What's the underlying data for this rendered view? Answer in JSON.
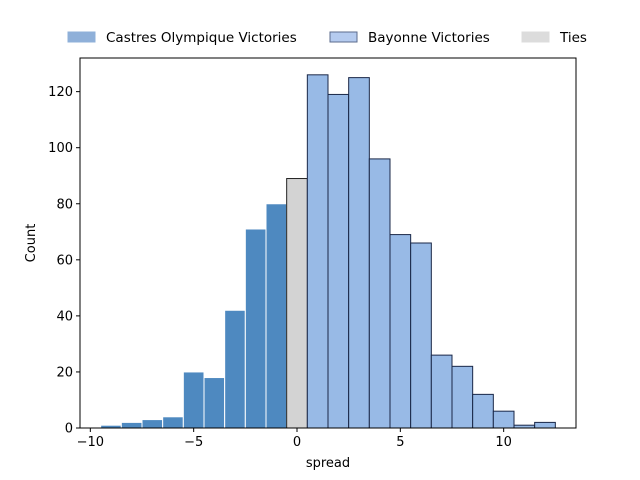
{
  "chart_data": {
    "type": "bar",
    "title": "",
    "xlabel": "spread",
    "ylabel": "Count",
    "xlim": [
      -10.5,
      13.5
    ],
    "ylim": [
      0,
      132
    ],
    "xticks": [
      -10,
      -5,
      0,
      5,
      10
    ],
    "yticks": [
      0,
      20,
      40,
      60,
      80,
      100,
      120
    ],
    "x_tick_labels": [
      "−10",
      "−5",
      "0",
      "5",
      "10"
    ],
    "y_tick_labels": [
      "0",
      "20",
      "40",
      "60",
      "80",
      "100",
      "120"
    ],
    "bin_width": 1,
    "legend": {
      "placement": "top (outside plot area)",
      "entries": [
        {
          "label": "Castres Olympique Victories",
          "color": "#8fb0d9",
          "edge": "#8fb0d9"
        },
        {
          "label": "Bayonne Victories",
          "color": "#b5cbef",
          "edge": "#5b6b8c"
        },
        {
          "label": "Ties",
          "color": "#dcdcdc",
          "edge": "#dcdcdc"
        }
      ]
    },
    "series": [
      {
        "name": "Castres Olympique Victories",
        "color": "#4e89c0",
        "edge": "#ffffff",
        "bins": [
          {
            "left": -9.5,
            "value": 1
          },
          {
            "left": -8.5,
            "value": 2
          },
          {
            "left": -7.5,
            "value": 3
          },
          {
            "left": -6.5,
            "value": 4
          },
          {
            "left": -5.5,
            "value": 20
          },
          {
            "left": -4.5,
            "value": 18
          },
          {
            "left": -3.5,
            "value": 42
          },
          {
            "left": -2.5,
            "value": 71
          },
          {
            "left": -1.5,
            "value": 80
          }
        ]
      },
      {
        "name": "Ties",
        "color": "#d3d3d3",
        "edge": "#222222",
        "bins": [
          {
            "left": -0.5,
            "value": 89
          }
        ]
      },
      {
        "name": "Bayonne Victories",
        "color": "#98bae6",
        "edge": "#1a2747",
        "bins": [
          {
            "left": 0.5,
            "value": 126
          },
          {
            "left": 1.5,
            "value": 119
          },
          {
            "left": 2.5,
            "value": 125
          },
          {
            "left": 3.5,
            "value": 96
          },
          {
            "left": 4.5,
            "value": 69
          },
          {
            "left": 5.5,
            "value": 66
          },
          {
            "left": 6.5,
            "value": 26
          },
          {
            "left": 7.5,
            "value": 22
          },
          {
            "left": 8.5,
            "value": 12
          },
          {
            "left": 9.5,
            "value": 6
          },
          {
            "left": 10.5,
            "value": 1
          },
          {
            "left": 11.5,
            "value": 2
          }
        ]
      }
    ]
  }
}
